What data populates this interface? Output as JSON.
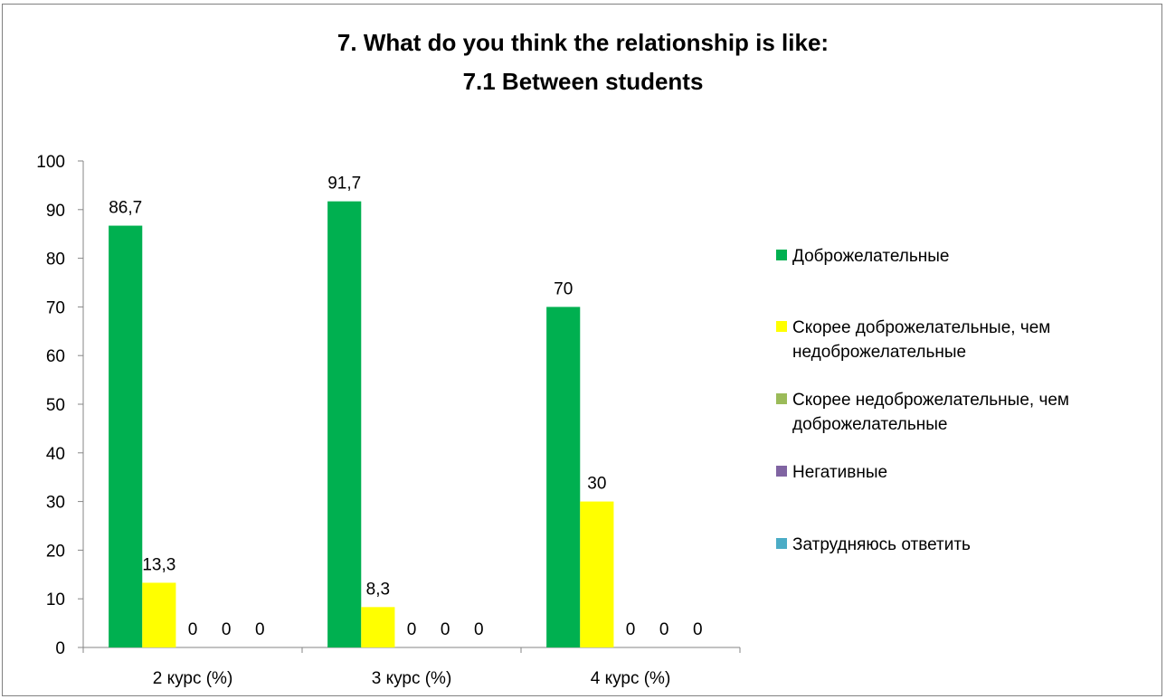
{
  "title_line1": "7. What do you think the relationship is like:",
  "title_line2": "7.1 Between students",
  "chart_data": {
    "type": "bar",
    "categories": [
      "2 курс (%)",
      "3 курс (%)",
      "4 курс (%)"
    ],
    "ylim": [
      0,
      100
    ],
    "yticks": [
      0,
      10,
      20,
      30,
      40,
      50,
      60,
      70,
      80,
      90,
      100
    ],
    "legend_position": "right",
    "series": [
      {
        "name": "Доброжелательные",
        "color": "#00B050",
        "values": [
          86.7,
          91.7,
          70
        ],
        "labels": [
          "86,7",
          "91,7",
          "70"
        ]
      },
      {
        "name": "Скорее доброжелательные, чем недоброжелательные",
        "color": "#FFFF00",
        "values": [
          13.3,
          8.3,
          30
        ],
        "labels": [
          "13,3",
          "8,3",
          "30"
        ]
      },
      {
        "name": "Скорее недоброжелательные, чем доброжелательные",
        "color": "#9BBB59",
        "values": [
          0,
          0,
          0
        ],
        "labels": [
          "0",
          "0",
          "0"
        ]
      },
      {
        "name": "Негативные",
        "color": "#8064A2",
        "values": [
          0,
          0,
          0
        ],
        "labels": [
          "0",
          "0",
          "0"
        ]
      },
      {
        "name": "Затрудняюсь ответить",
        "color": "#4BACC6",
        "values": [
          0,
          0,
          0
        ],
        "labels": [
          "0",
          "0",
          "0"
        ]
      }
    ]
  },
  "legend": [
    {
      "line1": "Доброжелательные",
      "line2": "",
      "color": "#00B050"
    },
    {
      "line1": "Скорее доброжелательные, чем",
      "line2": "недоброжелательные",
      "color": "#FFFF00"
    },
    {
      "line1": "Скорее недоброжелательные, чем",
      "line2": "доброжелательные",
      "color": "#9BBB59"
    },
    {
      "line1": "Негативные",
      "line2": "",
      "color": "#8064A2"
    },
    {
      "line1": "Затрудняюсь ответить",
      "line2": "",
      "color": "#4BACC6"
    }
  ]
}
